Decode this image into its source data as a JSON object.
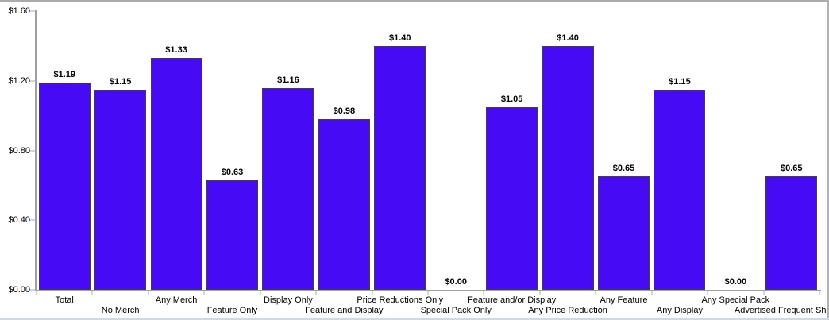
{
  "chart_data": {
    "type": "bar",
    "title": "",
    "xlabel": "",
    "ylabel": "",
    "grid": false,
    "legend": "none",
    "ylim": [
      0,
      1.6
    ],
    "categories": [
      "Total",
      "No Merch",
      "Any Merch",
      "Feature Only",
      "Display Only",
      "Feature and Display",
      "Price Reductions Only",
      "Special Pack Only",
      "Feature and/or Display",
      "Any Price Reduction",
      "Any Feature",
      "Any Display",
      "Any Special Pack",
      "Advertised Frequent Shopper"
    ],
    "values": [
      1.19,
      1.15,
      1.33,
      0.63,
      1.16,
      0.98,
      1.4,
      0.0,
      1.05,
      1.4,
      0.65,
      1.15,
      0.0,
      0.65
    ],
    "value_labels": [
      "$1.19",
      "$1.15",
      "$1.33",
      "$0.63",
      "$1.16",
      "$0.98",
      "$1.40",
      "$0.00",
      "$1.05",
      "$1.40",
      "$0.65",
      "$1.15",
      "$0.00",
      "$0.65"
    ],
    "y_tick_values": [
      0,
      0.4,
      0.8,
      1.2,
      1.6
    ],
    "y_tick_labels": [
      "$0.00",
      "$0.40",
      "$0.80",
      "$1.20",
      "$1.60"
    ],
    "colors": {
      "bar_fill": "#460AF5",
      "bar_border": "#404040",
      "axis": "#a0a0a0",
      "tick": "#c5d9f1",
      "text": "#000000"
    }
  }
}
